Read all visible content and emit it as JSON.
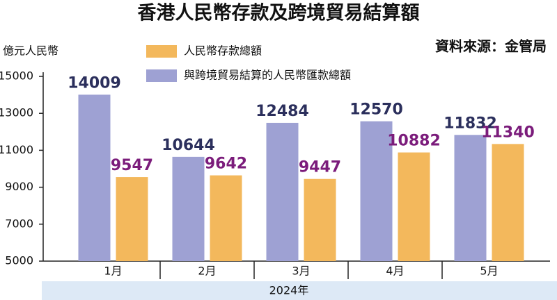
{
  "chart_data": {
    "type": "bar",
    "title": "香港人民幣存款及跨境貿易結算額",
    "source": "資料來源：金管局",
    "y_label": "億元人民幣",
    "x_label": "2024年",
    "categories": [
      "1月",
      "2月",
      "3月",
      "4月",
      "5月"
    ],
    "series": [
      {
        "name": "人民幣存款總額",
        "color": "#f3b85c",
        "values": [
          9547,
          9642,
          9447,
          10882,
          11340
        ]
      },
      {
        "name": "與跨境貿易結算的人民幣匯款總額",
        "color": "#9ea1d3",
        "values": [
          14009,
          10644,
          12484,
          12570,
          11832
        ]
      }
    ],
    "ylim": [
      5000,
      15000
    ],
    "yticks": [
      5000,
      7000,
      9000,
      11000,
      13000,
      15000
    ],
    "grid": false
  }
}
